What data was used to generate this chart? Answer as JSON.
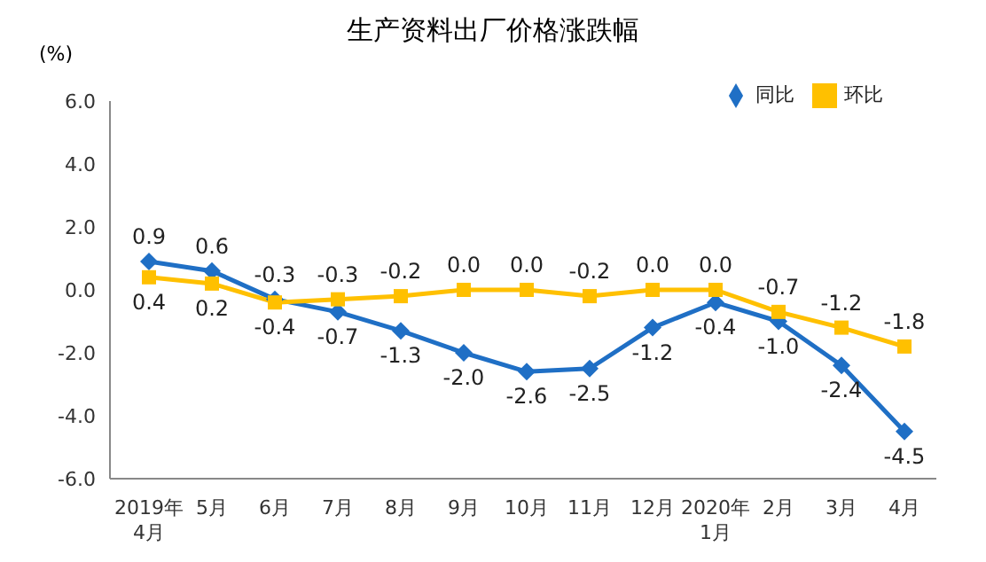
{
  "chart_data": {
    "type": "line",
    "title": "生产资料出厂价格涨跌幅",
    "ylabel": "(%)",
    "categories": [
      "2019年\n4月",
      "5月",
      "6月",
      "7月",
      "8月",
      "9月",
      "10月",
      "11月",
      "12月",
      "2020年\n1月",
      "2月",
      "3月",
      "4月"
    ],
    "series": [
      {
        "name": "同比",
        "color": "#1f6fc5",
        "marker": "diamond",
        "values": [
          0.9,
          0.6,
          -0.3,
          -0.7,
          -1.3,
          -2.0,
          -2.6,
          -2.5,
          -1.2,
          -0.4,
          -1.0,
          -2.4,
          -4.5
        ],
        "value_labels": [
          "0.9",
          "0.6",
          "-0.3",
          "-0.7",
          "-1.3",
          "-2.0",
          "-2.6",
          "-2.5",
          "-1.2",
          "-0.4",
          "-1.0",
          "-2.4",
          "-4.5"
        ]
      },
      {
        "name": "环比",
        "color": "#ffc000",
        "marker": "square",
        "values": [
          0.4,
          0.2,
          -0.4,
          -0.3,
          -0.2,
          0.0,
          0.0,
          -0.2,
          0.0,
          0.0,
          -0.7,
          -1.2,
          -1.8
        ],
        "value_labels": [
          "0.4",
          "0.2",
          "-0.4",
          "-0.3",
          "-0.2",
          "0.0",
          "0.0",
          "-0.2",
          "0.0",
          "0.0",
          "-0.7",
          "-1.2",
          "-1.8"
        ]
      }
    ],
    "ylim": [
      -6,
      6
    ],
    "yticks": [
      {
        "value": -6,
        "label": "-6.0"
      },
      {
        "value": -4,
        "label": "-4.0"
      },
      {
        "value": -2,
        "label": "-2.0"
      },
      {
        "value": 0,
        "label": "0.0"
      },
      {
        "value": 2,
        "label": "2.0"
      },
      {
        "value": 4,
        "label": "4.0"
      },
      {
        "value": 6,
        "label": "6.0"
      }
    ],
    "grid": false,
    "legend": "top right",
    "line_style": "solid"
  }
}
